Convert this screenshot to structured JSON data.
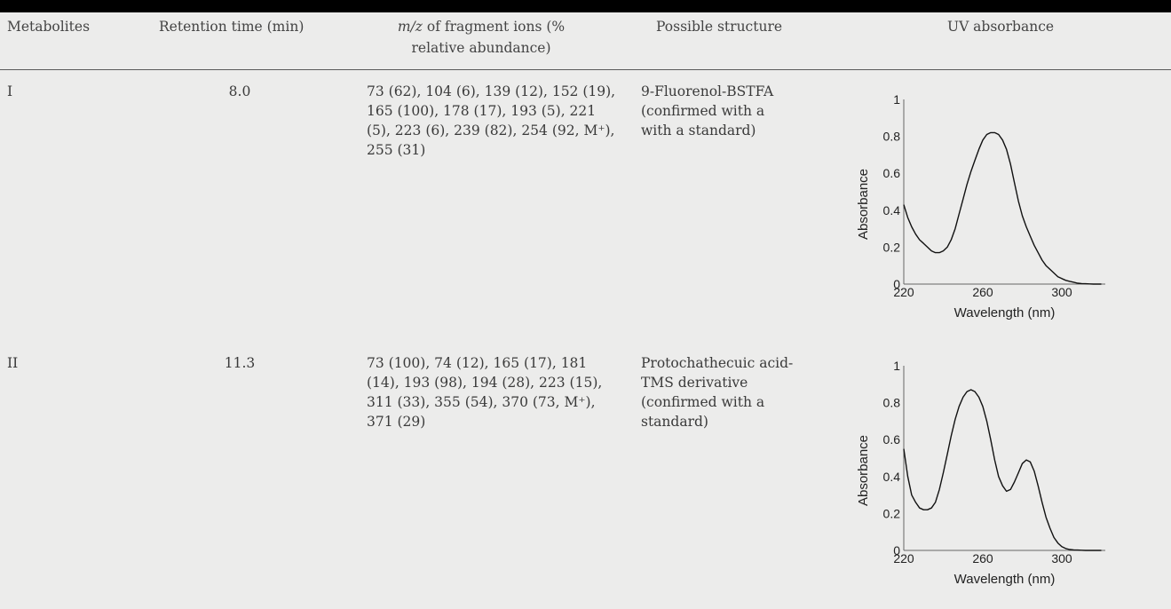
{
  "table": {
    "headers": {
      "metabolites": "Metabolites",
      "retention": "Retention time (min)",
      "mz_italic": "m/z",
      "mz_rest": " of fragment ions (%",
      "mz_line2": "relative abundance)",
      "structure": "Possible structure",
      "uv": "UV absorbance"
    },
    "rows": [
      {
        "metabolite": "I",
        "retention": "8.0",
        "fragments": "73 (62), 104 (6), 139 (12), 152 (19), 165 (100), 178 (17), 193 (5), 221 (5), 223 (6), 239 (82), 254 (92, M⁺), 255 (31)",
        "structure": "9-Fluorenol-BSTFA (confirmed with a with a standard)"
      },
      {
        "metabolite": "II",
        "retention": "11.3",
        "fragments": "73 (100), 74 (12), 165 (17), 181 (14), 193 (98), 194 (28), 223 (15), 311 (33), 355 (54), 370 (73, M⁺), 371 (29)",
        "structure": "Protochathecuic acid-TMS derivative (confirmed with a standard)"
      }
    ]
  },
  "chart_data": [
    {
      "type": "line",
      "xlabel": "Wavelength (nm)",
      "ylabel": "Absorbance",
      "xlim": [
        220,
        322
      ],
      "ylim": [
        0,
        1
      ],
      "xticks": [
        220,
        260,
        300
      ],
      "yticks": [
        0,
        0.2,
        0.4,
        0.6,
        0.8,
        1
      ],
      "ytick_labels": [
        "0",
        "0.2",
        "0.4",
        "0.6",
        "0.8",
        "1"
      ],
      "series": [
        {
          "x": [
            220,
            222,
            224,
            226,
            228,
            230,
            232,
            234,
            236,
            238,
            240,
            242,
            244,
            246,
            248,
            250,
            252,
            254,
            256,
            258,
            260,
            262,
            264,
            266,
            268,
            270,
            272,
            274,
            276,
            278,
            280,
            282,
            284,
            286,
            288,
            290,
            292,
            294,
            296,
            298,
            300,
            302,
            304,
            306,
            308,
            310,
            312,
            314,
            316,
            318,
            320
          ],
          "y": [
            0.43,
            0.36,
            0.31,
            0.27,
            0.24,
            0.22,
            0.2,
            0.18,
            0.17,
            0.17,
            0.18,
            0.2,
            0.24,
            0.3,
            0.38,
            0.46,
            0.54,
            0.61,
            0.67,
            0.73,
            0.78,
            0.81,
            0.82,
            0.82,
            0.81,
            0.78,
            0.73,
            0.65,
            0.55,
            0.45,
            0.37,
            0.31,
            0.26,
            0.21,
            0.17,
            0.13,
            0.1,
            0.08,
            0.06,
            0.04,
            0.03,
            0.02,
            0.015,
            0.01,
            0.005,
            0.003,
            0.002,
            0.001,
            0.0,
            0.0,
            0.0
          ]
        }
      ]
    },
    {
      "type": "line",
      "xlabel": "Wavelength (nm)",
      "ylabel": "Absorbance",
      "xlim": [
        220,
        322
      ],
      "ylim": [
        0,
        1
      ],
      "xticks": [
        220,
        260,
        300
      ],
      "yticks": [
        0,
        0.2,
        0.4,
        0.6,
        0.8,
        1
      ],
      "ytick_labels": [
        "0",
        "0.2",
        "0.4",
        "0.6",
        "0.8",
        "1"
      ],
      "series": [
        {
          "x": [
            220,
            222,
            224,
            226,
            228,
            230,
            232,
            234,
            236,
            238,
            240,
            242,
            244,
            246,
            248,
            250,
            252,
            254,
            256,
            258,
            260,
            262,
            264,
            266,
            268,
            270,
            272,
            274,
            276,
            278,
            280,
            282,
            284,
            286,
            288,
            290,
            292,
            294,
            296,
            298,
            300,
            302,
            304,
            306,
            308,
            310,
            312,
            314,
            316,
            318,
            320
          ],
          "y": [
            0.55,
            0.4,
            0.3,
            0.26,
            0.23,
            0.22,
            0.22,
            0.23,
            0.26,
            0.33,
            0.42,
            0.52,
            0.62,
            0.71,
            0.78,
            0.83,
            0.86,
            0.87,
            0.86,
            0.83,
            0.78,
            0.7,
            0.6,
            0.49,
            0.4,
            0.35,
            0.32,
            0.33,
            0.37,
            0.42,
            0.47,
            0.49,
            0.48,
            0.43,
            0.35,
            0.26,
            0.18,
            0.12,
            0.07,
            0.04,
            0.02,
            0.01,
            0.005,
            0.003,
            0.002,
            0.001,
            0.0,
            0.0,
            0.0,
            0.0,
            0.0
          ]
        }
      ]
    }
  ]
}
